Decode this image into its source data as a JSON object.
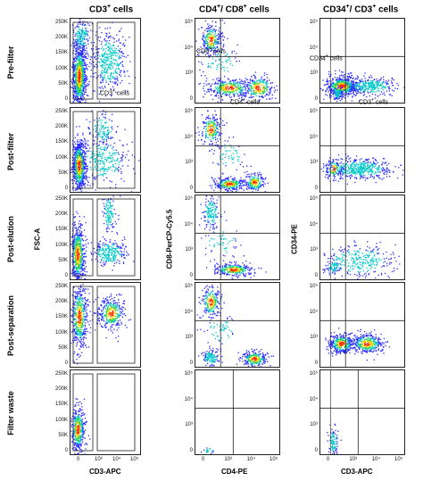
{
  "columns": {
    "c1": {
      "title": "CD3",
      "sup": "+",
      "rest": " cells"
    },
    "c2": {
      "title_a": "CD4",
      "sup_a": "+",
      "sep": "/ CD8",
      "sup_b": "+",
      "rest": " cells"
    },
    "c3": {
      "title_a": "CD34",
      "sup_a": "+",
      "sep": "/ CD3",
      "sup_b": "+",
      "rest": " cells"
    }
  },
  "rows": [
    "Pre-filter",
    "Post-filter",
    "Post-elution",
    "Post-separation",
    "Filter waste"
  ],
  "axes": {
    "fsc_label": "FSC-A",
    "cd3apc_label": "CD3-APC",
    "cd8_label": "CD8-PerCP-Cy5.5",
    "cd4_label": "CD4-PE",
    "cd34_label": "CD34-PE"
  },
  "ticks": {
    "fsc": [
      "250K",
      "200K",
      "150K",
      "100K",
      "50K",
      "0"
    ],
    "log_y": [
      "10⁵",
      "10⁴",
      "10³",
      "0"
    ],
    "log_x": [
      "0",
      "10³",
      "10⁴",
      "10⁵"
    ]
  },
  "gates": {
    "cd3": {
      "name": "CD3",
      "sup": "+",
      "rest": " cells"
    },
    "cd8": {
      "name": "CD8",
      "sup": "+",
      "rest": " cells"
    },
    "cd4": {
      "name": "CD4",
      "sup": "+",
      "rest": " cells"
    },
    "cd34": {
      "name": "CD34",
      "sup": "+",
      "rest": " cells"
    },
    "cd3b": {
      "name": "CD3",
      "sup": "+",
      "rest": " cells"
    }
  },
  "colors": {
    "low": "#2a2aff",
    "mid": "#00c8c8",
    "high": "#ffd400",
    "peak": "#ff2a00",
    "green": "#30d050"
  }
}
